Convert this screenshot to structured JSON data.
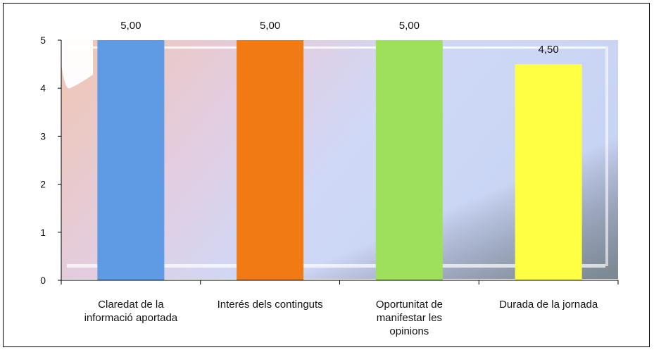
{
  "chart_data": {
    "type": "bar",
    "categories": [
      [
        "Claredat de la",
        "informació aportada"
      ],
      [
        "Interés dels continguts"
      ],
      [
        "Oportunitat de",
        "manifestar les",
        "opinions"
      ],
      [
        "Durada de la jornada"
      ]
    ],
    "values": [
      5.0,
      5.0,
      5.0,
      4.5
    ],
    "data_labels": [
      "5,00",
      "5,00",
      "5,00",
      "4,50"
    ],
    "colors": [
      "#5f9ae4",
      "#f27a14",
      "#9ee05c",
      "#ffff44"
    ],
    "ylim": [
      0,
      5
    ],
    "yticks": [
      "0",
      "1",
      "2",
      "3",
      "4",
      "5"
    ],
    "title": "",
    "xlabel": "",
    "ylabel": "",
    "grid": false,
    "legend": "none"
  }
}
